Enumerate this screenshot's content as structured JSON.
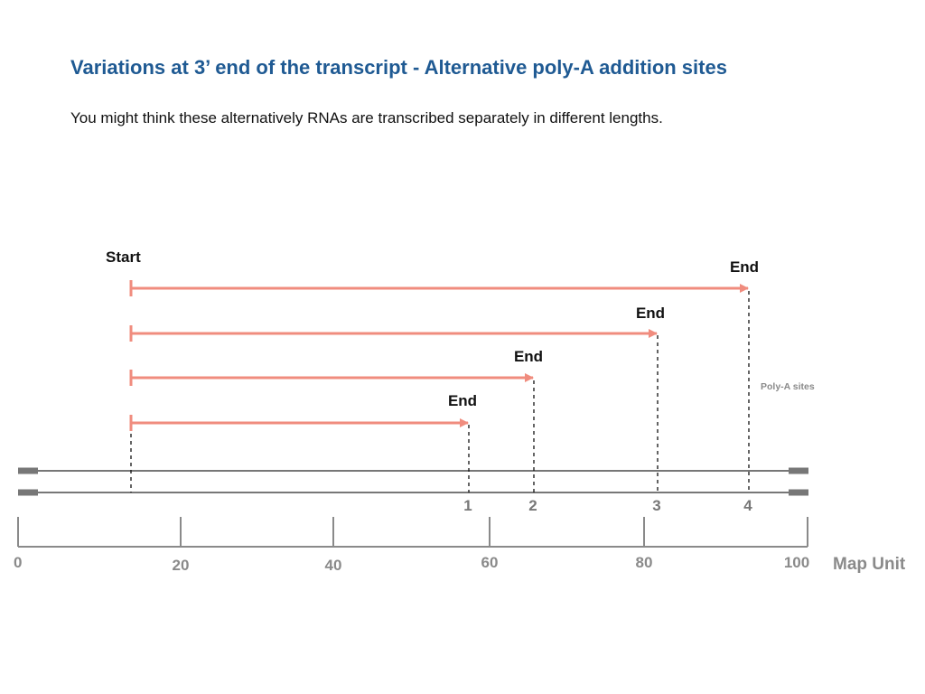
{
  "slide": {
    "title": "Variations at 3’ end of the transcript - Alternative poly-A addition sites",
    "subtitle": "You might think these alternatively RNAs are transcribed separately in different lengths."
  },
  "diagram": {
    "start_label": "Start",
    "start_map_unit": 14,
    "transcripts": [
      {
        "end_label": "End",
        "end_map_unit": 93
      },
      {
        "end_label": "End",
        "end_map_unit": 81
      },
      {
        "end_label": "End",
        "end_map_unit": 65
      },
      {
        "end_label": "End",
        "end_map_unit": 57
      }
    ],
    "polya_label": "Poly-A sites",
    "polya_sites": [
      {
        "label": "1",
        "map_unit": 57
      },
      {
        "label": "2",
        "map_unit": 65
      },
      {
        "label": "3",
        "map_unit": 81
      },
      {
        "label": "4",
        "map_unit": 93
      }
    ],
    "scale": {
      "min": 0,
      "max": 100,
      "ticks": [
        "0",
        "20",
        "40",
        "60",
        "80",
        "100"
      ],
      "tick_values": [
        0,
        20,
        40,
        60,
        80,
        100
      ],
      "unit_label": "Map Unit"
    },
    "colors": {
      "title": "#1f5a93",
      "arrow": "#f08c7e",
      "dna": "#777777",
      "scale": "#8a8a8a",
      "text": "#111111"
    }
  }
}
